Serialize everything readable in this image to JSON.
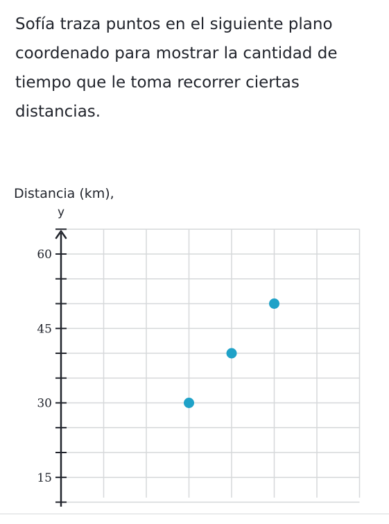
{
  "question": {
    "text": "Sofía traza puntos en el siguiente plano coordenado para mostrar la cantidad de tiempo que le toma recorrer ciertas distancias."
  },
  "chart_data": {
    "type": "scatter",
    "ylabel": "Distancia (km),",
    "yvar": "y",
    "ylim": [
      10,
      65
    ],
    "ytick_labels": [
      {
        "value": 15,
        "label": "15"
      },
      {
        "value": 30,
        "label": "30"
      },
      {
        "value": 45,
        "label": "45"
      },
      {
        "value": 60,
        "label": "60"
      }
    ],
    "y_minor_step": 5,
    "x_grid_step": 1,
    "xlim": [
      0,
      7
    ],
    "points": [
      {
        "x": 3,
        "y": 30
      },
      {
        "x": 4,
        "y": 40
      },
      {
        "x": 5,
        "y": 50
      }
    ],
    "point_color": "#1fa2c8",
    "grid_color": "#d6d8da",
    "axis_color": "#21242c",
    "grid": true
  }
}
